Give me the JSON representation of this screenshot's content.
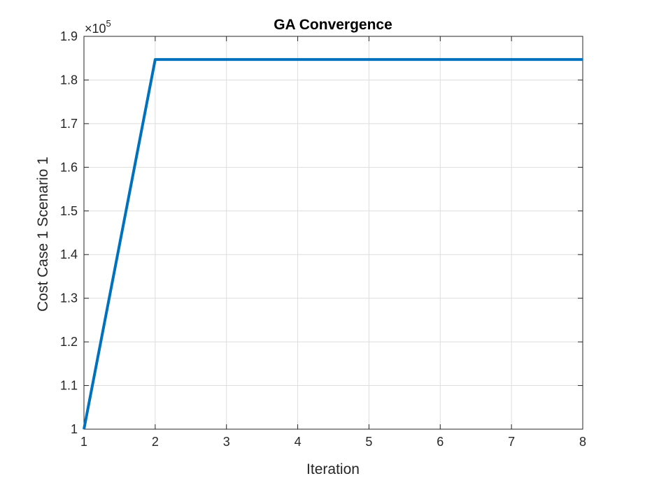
{
  "chart_data": {
    "type": "line",
    "title": "GA Convergence",
    "xlabel": "Iteration",
    "ylabel": "Cost Case 1 Scenario 1",
    "y_exponent_label": "×10",
    "y_exponent_power": "5",
    "xlim": [
      1,
      8
    ],
    "ylim": [
      1.0,
      1.9
    ],
    "xticks": [
      1,
      2,
      3,
      4,
      5,
      6,
      7,
      8
    ],
    "yticks": [
      1,
      1.1,
      1.2,
      1.3,
      1.4,
      1.5,
      1.6,
      1.7,
      1.8,
      1.9
    ],
    "ytick_labels": [
      "1",
      "1.1",
      "1.2",
      "1.3",
      "1.4",
      "1.5",
      "1.6",
      "1.7",
      "1.8",
      "1.9"
    ],
    "grid": true,
    "series": [
      {
        "x": [
          1,
          2,
          3,
          4,
          5,
          6,
          7,
          8
        ],
        "y": [
          1.0,
          1.847,
          1.847,
          1.847,
          1.847,
          1.847,
          1.847,
          1.847
        ],
        "color": "#0072BD"
      }
    ]
  }
}
